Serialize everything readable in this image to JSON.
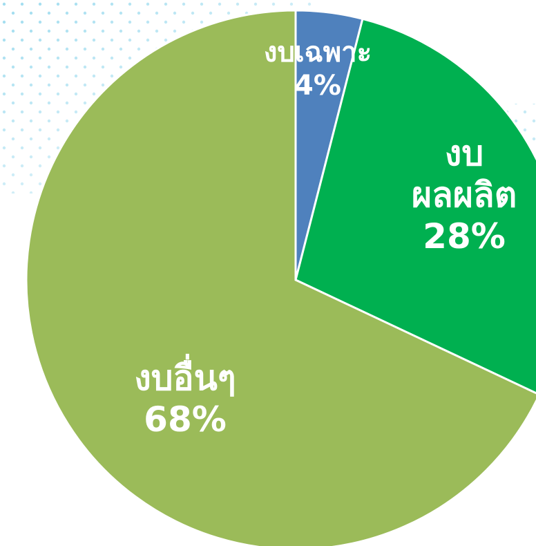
{
  "chart_data": {
    "type": "pie",
    "categories": [
      "งบเฉพาะ",
      "งบ ผลผลิต",
      "งบอื่นๆ"
    ],
    "values": [
      4,
      28,
      68
    ],
    "value_labels": [
      "4%",
      "28%",
      "68%"
    ],
    "colors": [
      "#4f81bd",
      "#00b050",
      "#9bbb59"
    ]
  }
}
